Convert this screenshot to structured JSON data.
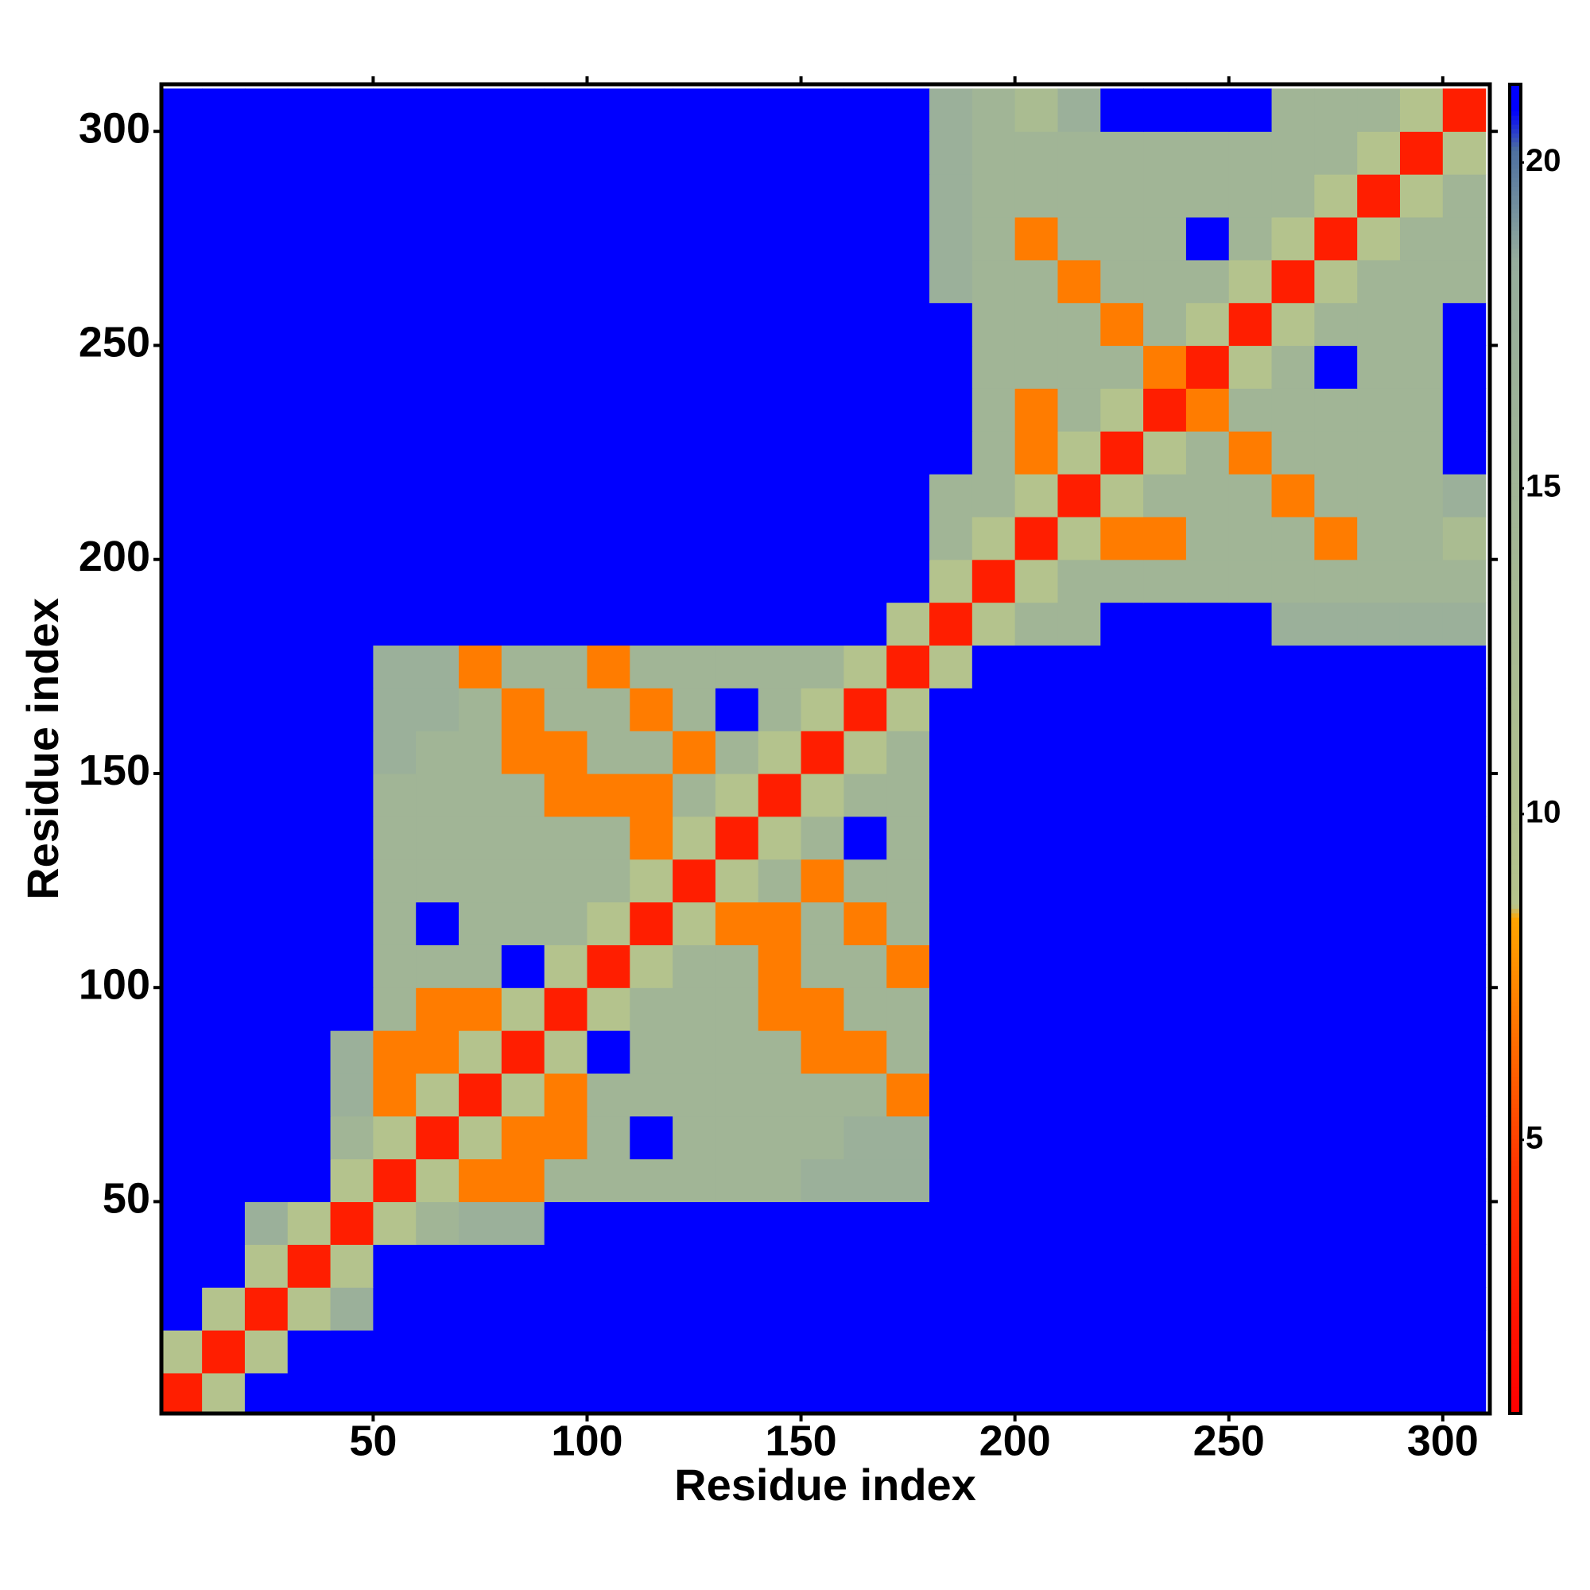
{
  "chart_data": {
    "type": "heatmap",
    "xlabel": "Residue index",
    "ylabel": "Residue index",
    "xlim": [
      0.5,
      311
    ],
    "ylim": [
      0.5,
      311
    ],
    "xticks": [
      50,
      100,
      150,
      200,
      250,
      300
    ],
    "yticks": [
      50,
      100,
      150,
      200,
      250,
      300
    ],
    "clim": [
      0.8,
      21.2
    ],
    "cticks": [
      5,
      10,
      15,
      20
    ],
    "colorscale": [
      {
        "value": 0.8,
        "color": "#ff0000"
      },
      {
        "value": 4.5,
        "color": "#ff3300"
      },
      {
        "value": 8.4,
        "color": "#ffa500"
      },
      {
        "value": 8.6,
        "color": "#b5c48c"
      },
      {
        "value": 18.5,
        "color": "#96ad9c"
      },
      {
        "value": 20.2,
        "color": "#4d6fa0"
      },
      {
        "value": 20.8,
        "color": "#0000ff"
      },
      {
        "value": 21.2,
        "color": "#0000ff"
      }
    ],
    "bins": [
      0,
      10,
      20,
      30,
      40,
      50,
      60,
      70,
      80,
      90,
      100,
      110,
      120,
      130,
      140,
      150,
      160,
      170,
      180,
      190,
      200,
      210,
      220,
      230,
      240,
      250,
      260,
      270,
      280,
      290,
      300,
      310
    ],
    "z": [
      [
        3,
        9,
        21,
        21,
        21,
        21,
        21,
        21,
        21,
        21,
        21,
        21,
        21,
        21,
        21,
        21,
        21,
        21,
        21,
        21,
        21,
        21,
        21,
        21,
        21,
        21,
        21,
        21,
        21,
        21,
        21
      ],
      [
        9,
        3,
        9,
        21,
        21,
        21,
        21,
        21,
        21,
        21,
        21,
        21,
        21,
        21,
        21,
        21,
        21,
        21,
        21,
        21,
        21,
        21,
        21,
        21,
        21,
        21,
        21,
        21,
        21,
        21,
        21
      ],
      [
        21,
        9,
        3,
        9,
        17,
        21,
        21,
        21,
        21,
        21,
        21,
        21,
        21,
        21,
        21,
        21,
        21,
        21,
        21,
        21,
        21,
        21,
        21,
        21,
        21,
        21,
        21,
        21,
        21,
        21,
        21
      ],
      [
        21,
        21,
        9,
        3,
        9,
        21,
        21,
        21,
        21,
        21,
        21,
        21,
        21,
        21,
        21,
        21,
        21,
        21,
        21,
        21,
        21,
        21,
        21,
        21,
        21,
        21,
        21,
        21,
        21,
        21,
        21
      ],
      [
        21,
        21,
        17,
        9,
        3,
        9,
        15,
        17,
        17,
        21,
        21,
        21,
        21,
        21,
        21,
        21,
        21,
        21,
        21,
        21,
        21,
        21,
        21,
        21,
        21,
        21,
        21,
        21,
        21,
        21,
        21
      ],
      [
        21,
        21,
        21,
        21,
        9,
        3,
        9,
        7,
        7,
        15,
        15,
        15,
        15,
        15,
        15,
        17,
        17,
        17,
        21,
        21,
        21,
        21,
        21,
        21,
        21,
        21,
        21,
        21,
        21,
        21,
        21
      ],
      [
        21,
        21,
        21,
        21,
        15,
        9,
        3,
        9,
        7,
        7,
        15,
        21,
        15,
        15,
        15,
        15,
        17,
        17,
        21,
        21,
        21,
        21,
        21,
        21,
        21,
        21,
        21,
        21,
        21,
        21,
        21
      ],
      [
        21,
        21,
        21,
        21,
        17,
        7,
        9,
        3,
        9,
        7,
        15,
        15,
        15,
        15,
        15,
        15,
        15,
        7,
        21,
        21,
        21,
        21,
        21,
        21,
        21,
        21,
        21,
        21,
        21,
        21,
        21
      ],
      [
        21,
        21,
        21,
        21,
        17,
        7,
        7,
        9,
        3,
        9,
        21,
        15,
        15,
        15,
        15,
        7,
        7,
        15,
        21,
        21,
        21,
        21,
        21,
        21,
        21,
        21,
        21,
        21,
        21,
        21,
        21
      ],
      [
        21,
        21,
        21,
        21,
        21,
        15,
        7,
        7,
        9,
        3,
        9,
        15,
        15,
        15,
        7,
        7,
        15,
        15,
        21,
        21,
        21,
        21,
        21,
        21,
        21,
        21,
        21,
        21,
        21,
        21,
        21
      ],
      [
        21,
        21,
        21,
        21,
        21,
        15,
        15,
        15,
        21,
        9,
        3,
        9,
        15,
        15,
        7,
        15,
        15,
        7,
        21,
        21,
        21,
        21,
        21,
        21,
        21,
        21,
        21,
        21,
        21,
        21,
        21
      ],
      [
        21,
        21,
        21,
        21,
        21,
        15,
        21,
        15,
        15,
        15,
        9,
        3,
        9,
        7,
        7,
        15,
        7,
        15,
        21,
        21,
        21,
        21,
        21,
        21,
        21,
        21,
        21,
        21,
        21,
        21,
        21
      ],
      [
        21,
        21,
        21,
        21,
        21,
        15,
        15,
        15,
        15,
        15,
        15,
        9,
        3,
        9,
        15,
        7,
        15,
        15,
        21,
        21,
        21,
        21,
        21,
        21,
        21,
        21,
        21,
        21,
        21,
        21,
        21
      ],
      [
        21,
        21,
        21,
        21,
        21,
        15,
        15,
        15,
        15,
        15,
        15,
        7,
        9,
        3,
        9,
        15,
        21,
        15,
        21,
        21,
        21,
        21,
        21,
        21,
        21,
        21,
        21,
        21,
        21,
        21,
        21
      ],
      [
        21,
        21,
        21,
        21,
        21,
        15,
        15,
        15,
        15,
        7,
        7,
        7,
        15,
        9,
        3,
        9,
        15,
        15,
        21,
        21,
        21,
        21,
        21,
        21,
        21,
        21,
        21,
        21,
        21,
        21,
        21
      ],
      [
        21,
        21,
        21,
        21,
        21,
        17,
        15,
        15,
        7,
        7,
        15,
        15,
        7,
        15,
        9,
        3,
        9,
        15,
        21,
        21,
        21,
        21,
        21,
        21,
        21,
        21,
        21,
        21,
        21,
        21,
        21
      ],
      [
        21,
        21,
        21,
        21,
        21,
        17,
        17,
        15,
        7,
        15,
        15,
        7,
        15,
        21,
        15,
        9,
        3,
        9,
        21,
        21,
        21,
        21,
        21,
        21,
        21,
        21,
        21,
        21,
        21,
        21,
        21
      ],
      [
        21,
        21,
        21,
        21,
        21,
        17,
        17,
        7,
        15,
        15,
        7,
        15,
        15,
        15,
        15,
        15,
        9,
        3,
        9,
        21,
        21,
        21,
        21,
        21,
        21,
        21,
        21,
        21,
        21,
        21,
        21
      ],
      [
        21,
        21,
        21,
        21,
        21,
        21,
        21,
        21,
        21,
        21,
        21,
        21,
        21,
        21,
        21,
        21,
        21,
        9,
        3,
        9,
        15,
        15,
        21,
        21,
        21,
        21,
        17,
        17,
        17,
        17,
        17
      ],
      [
        21,
        21,
        21,
        21,
        21,
        21,
        21,
        21,
        21,
        21,
        21,
        21,
        21,
        21,
        21,
        21,
        21,
        21,
        9,
        3,
        9,
        15,
        15,
        15,
        15,
        15,
        15,
        15,
        15,
        15,
        15
      ],
      [
        21,
        21,
        21,
        21,
        21,
        21,
        21,
        21,
        21,
        21,
        21,
        21,
        21,
        21,
        21,
        21,
        21,
        21,
        15,
        9,
        3,
        9,
        7,
        7,
        15,
        15,
        15,
        7,
        15,
        15,
        12
      ],
      [
        21,
        21,
        21,
        21,
        21,
        21,
        21,
        21,
        21,
        21,
        21,
        21,
        21,
        21,
        21,
        21,
        21,
        21,
        15,
        15,
        9,
        3,
        9,
        15,
        15,
        15,
        7,
        15,
        15,
        15,
        17
      ],
      [
        21,
        21,
        21,
        21,
        21,
        21,
        21,
        21,
        21,
        21,
        21,
        21,
        21,
        21,
        21,
        21,
        21,
        21,
        21,
        15,
        7,
        9,
        3,
        9,
        15,
        7,
        15,
        15,
        15,
        15,
        21
      ],
      [
        21,
        21,
        21,
        21,
        21,
        21,
        21,
        21,
        21,
        21,
        21,
        21,
        21,
        21,
        21,
        21,
        21,
        21,
        21,
        15,
        7,
        15,
        9,
        3,
        7,
        15,
        15,
        15,
        15,
        15,
        21
      ],
      [
        21,
        21,
        21,
        21,
        21,
        21,
        21,
        21,
        21,
        21,
        21,
        21,
        21,
        21,
        21,
        21,
        21,
        21,
        21,
        15,
        15,
        15,
        15,
        7,
        3,
        9,
        15,
        21,
        15,
        15,
        21
      ],
      [
        21,
        21,
        21,
        21,
        21,
        21,
        21,
        21,
        21,
        21,
        21,
        21,
        21,
        21,
        21,
        21,
        21,
        21,
        21,
        15,
        15,
        15,
        7,
        15,
        9,
        3,
        9,
        15,
        15,
        15,
        21
      ],
      [
        21,
        21,
        21,
        21,
        21,
        21,
        21,
        21,
        21,
        21,
        21,
        21,
        21,
        21,
        21,
        21,
        21,
        21,
        17,
        15,
        15,
        7,
        15,
        15,
        15,
        9,
        3,
        9,
        15,
        15,
        15
      ],
      [
        21,
        21,
        21,
        21,
        21,
        21,
        21,
        21,
        21,
        21,
        21,
        21,
        21,
        21,
        21,
        21,
        21,
        21,
        17,
        15,
        7,
        15,
        15,
        15,
        21,
        15,
        9,
        3,
        9,
        15,
        15
      ],
      [
        21,
        21,
        21,
        21,
        21,
        21,
        21,
        21,
        21,
        21,
        21,
        21,
        21,
        21,
        21,
        21,
        21,
        21,
        17,
        15,
        15,
        15,
        15,
        15,
        15,
        15,
        15,
        9,
        3,
        9,
        15
      ],
      [
        21,
        21,
        21,
        21,
        21,
        21,
        21,
        21,
        21,
        21,
        21,
        21,
        21,
        21,
        21,
        21,
        21,
        21,
        17,
        15,
        15,
        15,
        15,
        15,
        15,
        15,
        15,
        15,
        9,
        3,
        9
      ],
      [
        21,
        21,
        21,
        21,
        21,
        21,
        21,
        21,
        21,
        21,
        21,
        21,
        21,
        21,
        21,
        21,
        21,
        21,
        17,
        15,
        12,
        17,
        21,
        21,
        21,
        21,
        15,
        15,
        15,
        9,
        3
      ]
    ]
  }
}
